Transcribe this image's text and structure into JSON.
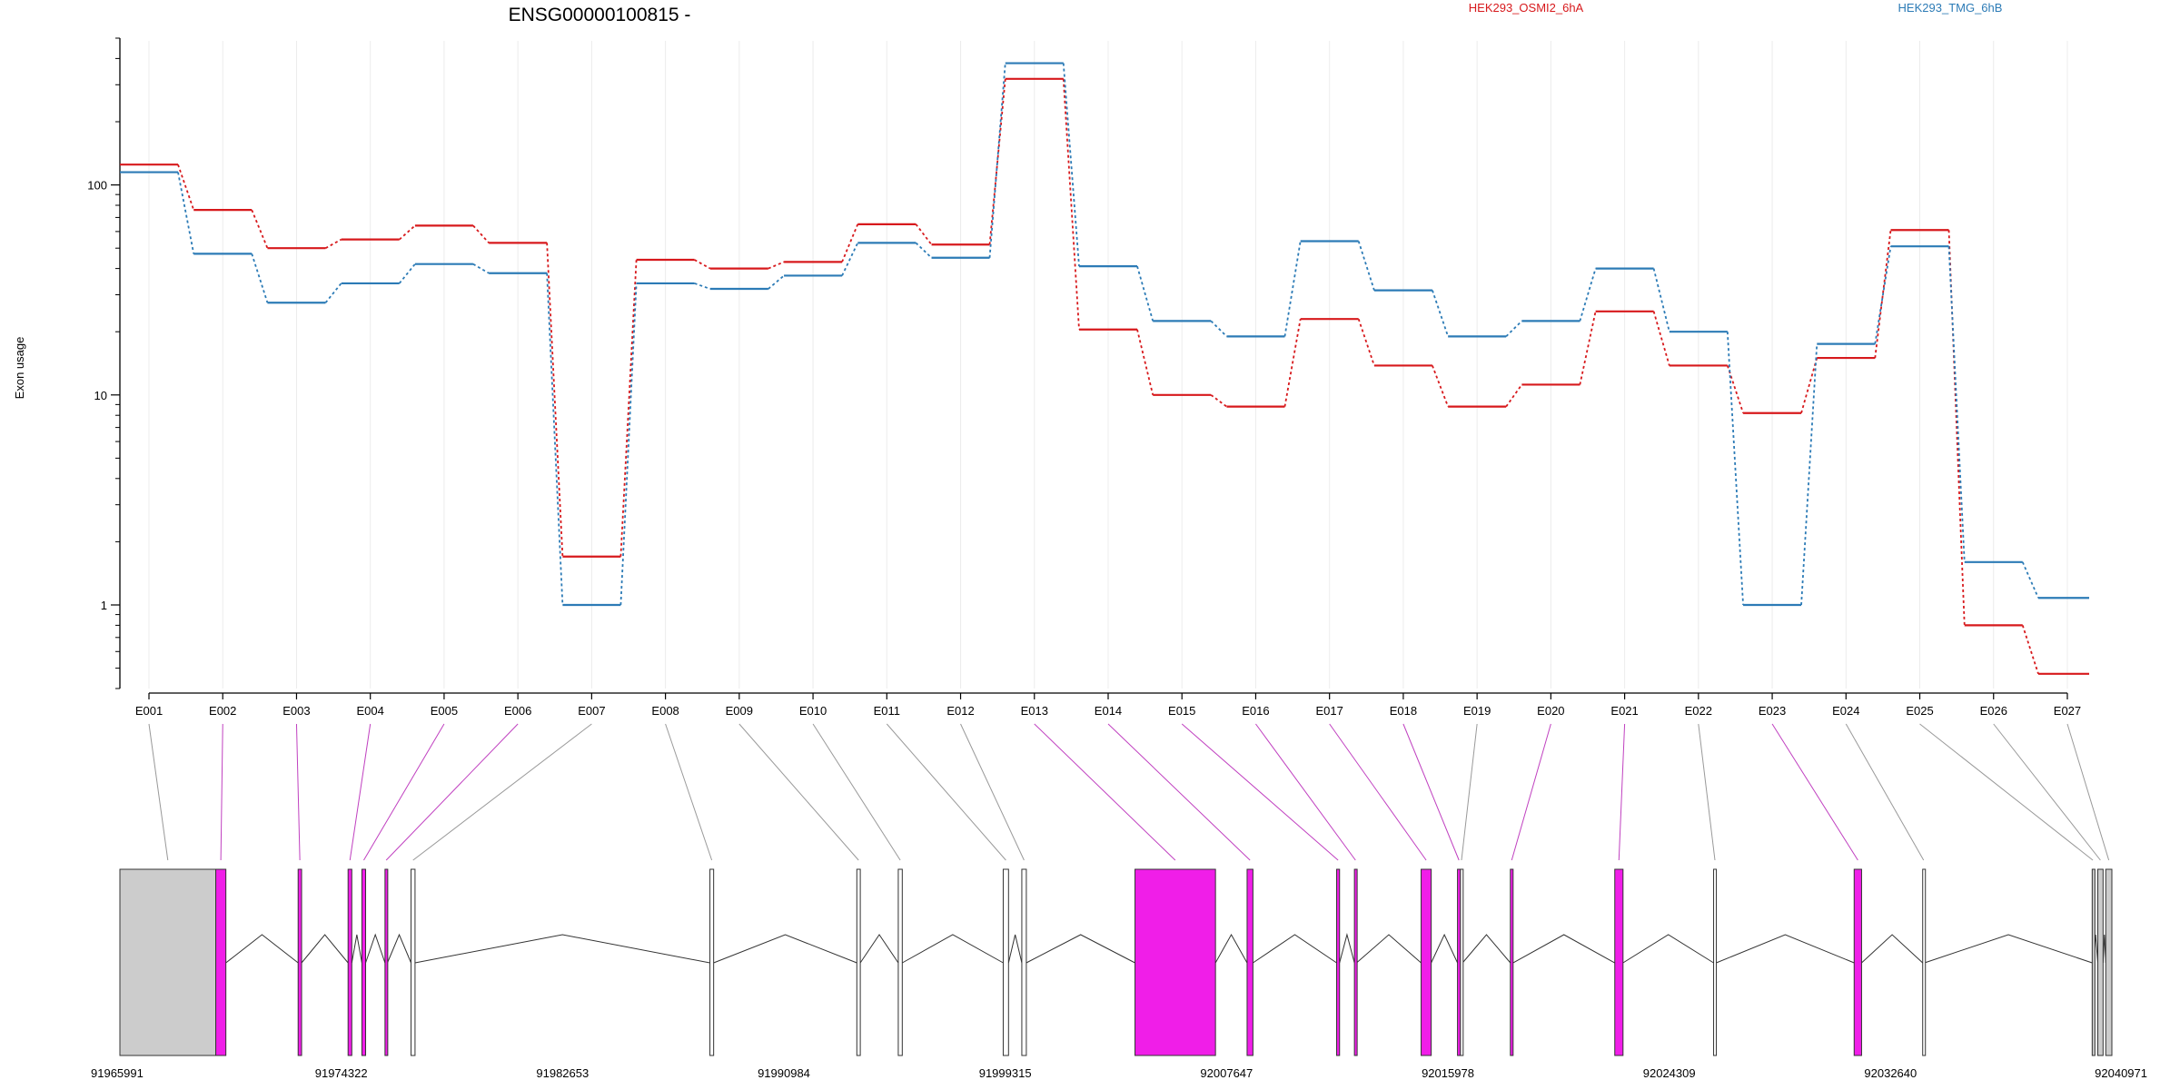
{
  "chart_data": {
    "type": "line",
    "title": "ENSG00000100815 -",
    "ylabel": "Exon usage",
    "y_scale": "log",
    "ylim": [
      0.4,
      500
    ],
    "y_ticks": [
      1,
      10,
      100
    ],
    "y_tick_labels": [
      "1",
      "10",
      "100"
    ],
    "grid": "vertical, light",
    "legend_placement": "top-right",
    "categories": [
      "E001",
      "E002",
      "E003",
      "E004",
      "E005",
      "E006",
      "E007",
      "E008",
      "E009",
      "E010",
      "E011",
      "E012",
      "E013",
      "E014",
      "E015",
      "E016",
      "E017",
      "E018",
      "E019",
      "E020",
      "E021",
      "E022",
      "E023",
      "E024",
      "E025",
      "E026",
      "E027"
    ],
    "series": [
      {
        "name": "HEK293_OSMI2_6hA",
        "color": "#d7191c",
        "values": [
          125,
          76,
          50,
          55,
          64,
          53,
          1.7,
          44,
          40,
          43,
          65,
          52,
          320,
          20.5,
          10,
          8.8,
          23,
          13.8,
          8.8,
          11.2,
          25,
          13.8,
          8.2,
          15,
          61,
          0.8,
          0.47
        ]
      },
      {
        "name": "HEK293_TMG_6hB",
        "color": "#2c7bb6",
        "values": [
          115,
          47,
          27.5,
          34,
          42,
          38,
          1.0,
          34,
          32,
          37,
          53,
          45,
          380,
          41,
          22.5,
          19,
          54,
          31.5,
          19,
          22.5,
          40,
          20,
          1.0,
          17.5,
          51,
          1.6,
          1.08
        ]
      }
    ],
    "gene_model": {
      "coordinates": [
        "91965991",
        "91974322",
        "91982653",
        "91990984",
        "91999315",
        "92007647",
        "92015978",
        "92024309",
        "92032640",
        "92040971"
      ],
      "coordinate_values": [
        91965991,
        91974322,
        91982653,
        91990984,
        91999315,
        92007647,
        92015978,
        92024309,
        92032640,
        92040971
      ],
      "xlim": [
        91965991,
        92040971
      ],
      "exons": [
        {
          "id": "E001",
          "start": 91965991,
          "end": 91969600,
          "color": "#cccccc"
        },
        {
          "id": "E002",
          "start": 91969600,
          "end": 91969980,
          "color": "#f01ee8"
        },
        {
          "id": "E003",
          "start": 91972700,
          "end": 91972830,
          "color": "#f01ee8"
        },
        {
          "id": "E004",
          "start": 91974580,
          "end": 91974720,
          "color": "#f01ee8"
        },
        {
          "id": "E005",
          "start": 91975100,
          "end": 91975240,
          "color": "#f01ee8"
        },
        {
          "id": "E006",
          "start": 91975970,
          "end": 91976060,
          "color": "#f01ee8"
        },
        {
          "id": "E007",
          "start": 91976950,
          "end": 91977100,
          "color": "#ffffff"
        },
        {
          "id": "E008",
          "start": 91988200,
          "end": 91988340,
          "color": "#ffffff"
        },
        {
          "id": "E009",
          "start": 91993730,
          "end": 91993860,
          "color": "#ffffff"
        },
        {
          "id": "E010",
          "start": 91995290,
          "end": 91995440,
          "color": "#ffffff"
        },
        {
          "id": "E011",
          "start": 91999240,
          "end": 91999440,
          "color": "#ffffff"
        },
        {
          "id": "E012",
          "start": 91999940,
          "end": 92000110,
          "color": "#ffffff"
        },
        {
          "id": "E013",
          "start": 92004200,
          "end": 92007230,
          "color": "#f01ee8"
        },
        {
          "id": "E014",
          "start": 92008420,
          "end": 92008640,
          "color": "#f01ee8"
        },
        {
          "id": "E015",
          "start": 92011790,
          "end": 92011900,
          "color": "#f01ee8"
        },
        {
          "id": "E016",
          "start": 92012460,
          "end": 92012540,
          "color": "#f01ee8"
        },
        {
          "id": "E017",
          "start": 92014970,
          "end": 92015350,
          "color": "#f01ee8"
        },
        {
          "id": "E018",
          "start": 92016340,
          "end": 92016450,
          "color": "#f01ee8"
        },
        {
          "id": "E019",
          "start": 92016450,
          "end": 92016530,
          "color": "#ffffff"
        },
        {
          "id": "E020",
          "start": 92018330,
          "end": 92018430,
          "color": "#f01ee8"
        },
        {
          "id": "E021",
          "start": 92022260,
          "end": 92022570,
          "color": "#f01ee8"
        },
        {
          "id": "E022",
          "start": 92025980,
          "end": 92026080,
          "color": "#ffffff"
        },
        {
          "id": "E023",
          "start": 92031270,
          "end": 92031550,
          "color": "#f01ee8"
        },
        {
          "id": "E024",
          "start": 92033850,
          "end": 92033920,
          "color": "#ffffff"
        },
        {
          "id": "E025",
          "start": 92040230,
          "end": 92040280,
          "color": "#cccccc"
        },
        {
          "id": "E026",
          "start": 92040440,
          "end": 92040640,
          "color": "#cccccc"
        },
        {
          "id": "E027",
          "start": 92040740,
          "end": 92040971,
          "color": "#cccccc"
        }
      ]
    }
  }
}
